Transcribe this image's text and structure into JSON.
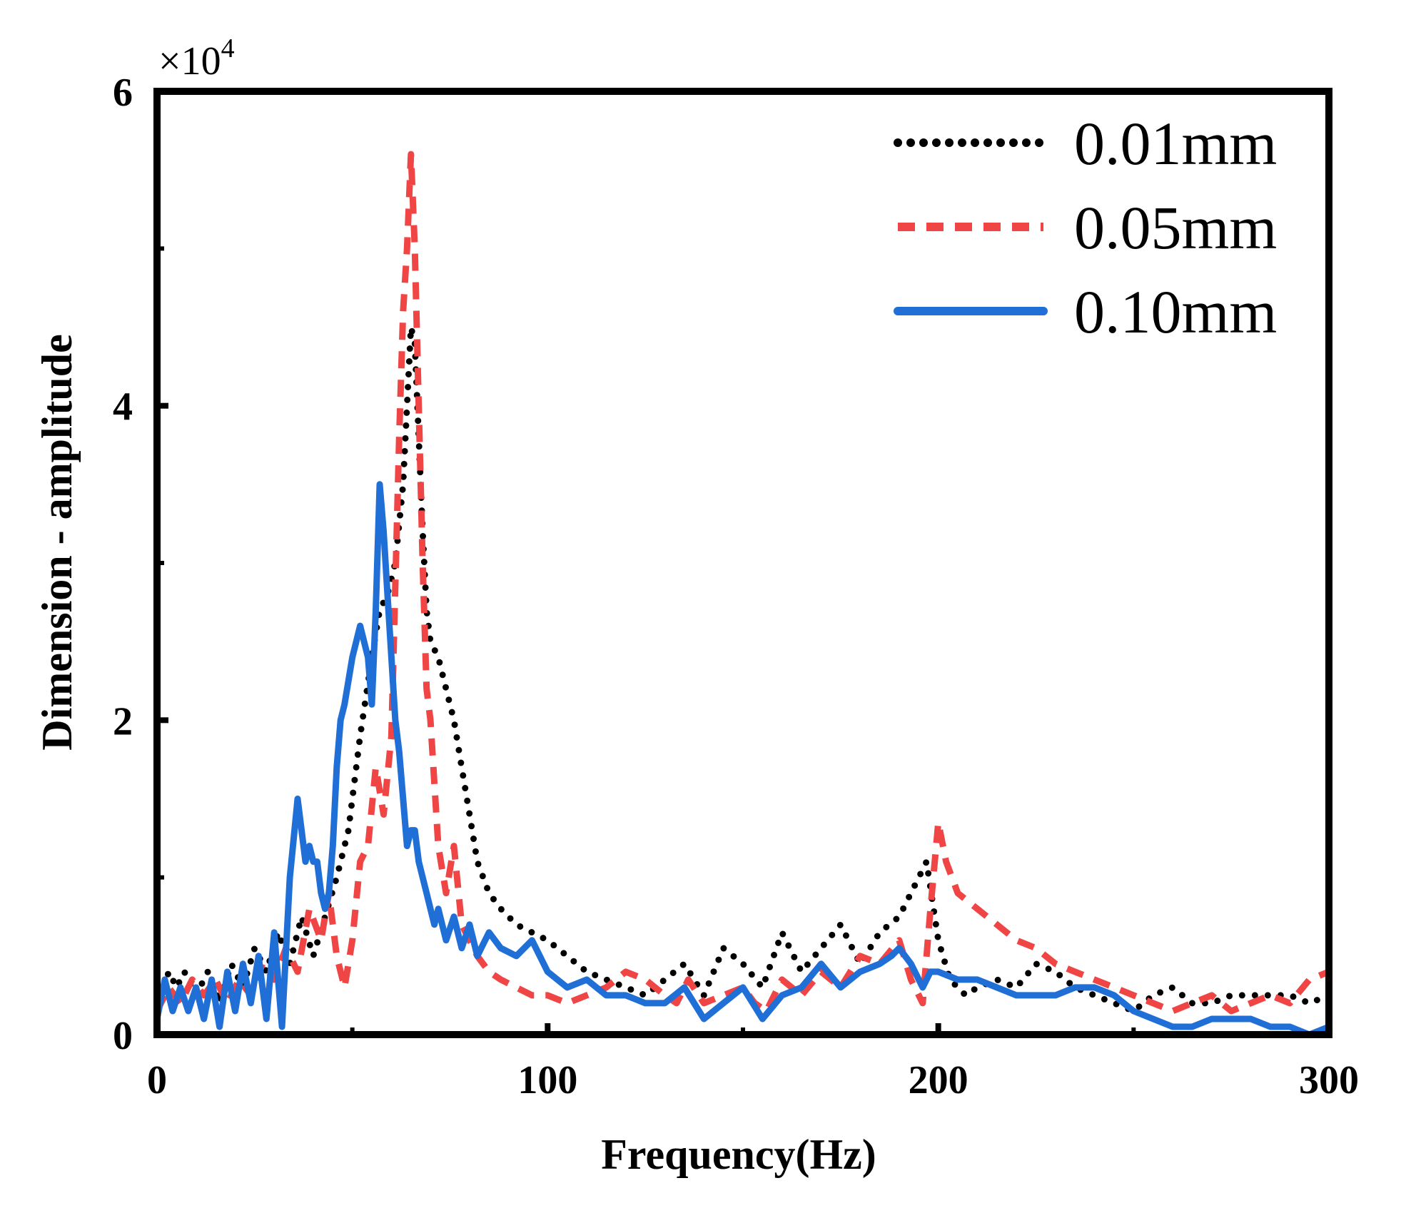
{
  "chart_data": {
    "type": "line",
    "title": "",
    "xlabel": "Frequency(Hz)",
    "ylabel": "Dimension - amplitude",
    "xlim": [
      0,
      300
    ],
    "ylim": [
      0,
      60000
    ],
    "xticks": [
      0,
      100,
      200,
      300
    ],
    "xtick_labels": [
      "0",
      "100",
      "200",
      "300"
    ],
    "yticks": [
      0,
      20000,
      40000,
      60000
    ],
    "ytick_labels": [
      "0",
      "2",
      "4",
      "6"
    ],
    "y_multiplier": {
      "base": "×10",
      "exponent": "4"
    },
    "grid": false,
    "legend_position": "top-right",
    "series": [
      {
        "name": "0.01mm",
        "color": "#000000",
        "style": "dotted",
        "x": [
          0,
          3,
          5,
          7,
          10,
          13,
          16,
          19,
          22,
          25,
          28,
          31,
          34,
          37,
          40,
          43,
          46,
          49,
          52,
          55,
          57,
          59,
          61,
          63,
          64,
          65,
          66,
          67,
          68,
          69,
          70,
          72,
          74,
          76,
          78,
          80,
          82,
          85,
          88,
          92,
          96,
          100,
          105,
          110,
          115,
          120,
          125,
          130,
          135,
          140,
          145,
          150,
          155,
          160,
          165,
          170,
          175,
          180,
          185,
          190,
          195,
          197,
          200,
          203,
          207,
          210,
          215,
          220,
          225,
          230,
          235,
          240,
          245,
          250,
          255,
          260,
          265,
          270,
          275,
          280,
          285,
          290,
          295,
          300
        ],
        "values": [
          1500,
          4000,
          3000,
          4000,
          2500,
          4000,
          2000,
          4500,
          3000,
          5500,
          4000,
          6500,
          4500,
          7500,
          5000,
          7500,
          10000,
          13000,
          19000,
          24000,
          27000,
          28000,
          30000,
          35000,
          40000,
          45000,
          44000,
          38000,
          32000,
          27000,
          25000,
          24000,
          22000,
          20000,
          17000,
          14000,
          11000,
          9000,
          8000,
          7000,
          6500,
          6000,
          5000,
          4000,
          3500,
          3000,
          2500,
          3500,
          4500,
          2500,
          5500,
          4500,
          3000,
          6500,
          4000,
          5500,
          7000,
          4500,
          6500,
          7500,
          10000,
          11000,
          6000,
          3500,
          2500,
          3000,
          3500,
          3000,
          4500,
          4000,
          3000,
          2500,
          2000,
          1500,
          2500,
          3000,
          2000,
          2000,
          2500,
          2500,
          2500,
          2500,
          2000,
          2500
        ]
      },
      {
        "name": "0.05mm",
        "color": "#f04545",
        "style": "dashed",
        "x": [
          0,
          3,
          6,
          9,
          12,
          15,
          18,
          21,
          24,
          27,
          30,
          33,
          36,
          39,
          42,
          44,
          46,
          48,
          50,
          52,
          54,
          56,
          58,
          60,
          62,
          63,
          64,
          65,
          66,
          67,
          68,
          69,
          70,
          72,
          74,
          76,
          78,
          80,
          82,
          85,
          88,
          92,
          96,
          100,
          105,
          110,
          115,
          120,
          125,
          130,
          133,
          136,
          140,
          145,
          150,
          153,
          156,
          160,
          165,
          170,
          175,
          180,
          185,
          190,
          193,
          196,
          198,
          200,
          202,
          205,
          210,
          215,
          220,
          225,
          230,
          235,
          240,
          245,
          250,
          255,
          260,
          265,
          270,
          275,
          280,
          285,
          290,
          295,
          300
        ],
        "values": [
          1500,
          3000,
          2000,
          3500,
          2500,
          3500,
          2000,
          3500,
          2500,
          4500,
          3500,
          5500,
          4000,
          8000,
          6000,
          9000,
          5000,
          3000,
          6000,
          11000,
          12000,
          17000,
          14000,
          19000,
          38000,
          46000,
          50000,
          56000,
          50000,
          40000,
          30000,
          22000,
          20000,
          12000,
          9000,
          12000,
          7000,
          6000,
          5000,
          4000,
          3500,
          3000,
          2500,
          2500,
          2000,
          2500,
          3000,
          4000,
          3500,
          2500,
          2000,
          3500,
          2000,
          2500,
          3000,
          2000,
          1500,
          3500,
          2500,
          4000,
          3000,
          5000,
          4500,
          6000,
          3500,
          2000,
          8000,
          13500,
          11000,
          9000,
          8000,
          7000,
          6000,
          5500,
          4500,
          4000,
          3500,
          3000,
          2500,
          2000,
          1500,
          2000,
          2500,
          1500,
          2000,
          2500,
          2000,
          3500,
          4000
        ]
      },
      {
        "name": "0.10mm",
        "color": "#1f6fd6",
        "style": "solid",
        "x": [
          0,
          2,
          4,
          6,
          8,
          10,
          12,
          14,
          16,
          18,
          20,
          22,
          24,
          26,
          28,
          30,
          32,
          34,
          36,
          38,
          39,
          40,
          41,
          42,
          43,
          44,
          45,
          46,
          47,
          48,
          50,
          52,
          54,
          55,
          56,
          57,
          58,
          59,
          60,
          61,
          62,
          63,
          64,
          65,
          66,
          67,
          68,
          69,
          70,
          71,
          72,
          74,
          76,
          78,
          80,
          82,
          85,
          88,
          92,
          96,
          100,
          105,
          110,
          115,
          120,
          125,
          130,
          135,
          140,
          145,
          150,
          155,
          160,
          165,
          170,
          175,
          180,
          185,
          188,
          190,
          193,
          196,
          198,
          200,
          205,
          210,
          215,
          220,
          225,
          230,
          235,
          240,
          245,
          250,
          255,
          260,
          265,
          270,
          275,
          280,
          285,
          290,
          295,
          300
        ],
        "values": [
          1000,
          3500,
          1500,
          3000,
          1500,
          3000,
          1000,
          3500,
          500,
          4000,
          1500,
          4500,
          2000,
          5000,
          1000,
          6500,
          500,
          10000,
          15000,
          11000,
          12000,
          11000,
          11000,
          9000,
          8000,
          9000,
          12000,
          17000,
          20000,
          21000,
          24000,
          26000,
          24000,
          21000,
          27000,
          35000,
          32000,
          28000,
          24000,
          20000,
          18000,
          15000,
          12000,
          13000,
          13000,
          11000,
          10000,
          9000,
          8000,
          7000,
          8000,
          6000,
          7500,
          5500,
          7000,
          5000,
          6500,
          5500,
          5000,
          6000,
          4000,
          3000,
          3500,
          2500,
          2500,
          2000,
          2000,
          3000,
          1000,
          2000,
          3000,
          1000,
          2500,
          3000,
          4500,
          3000,
          4000,
          4500,
          5000,
          5500,
          4500,
          3000,
          4000,
          4000,
          3500,
          3500,
          3000,
          2500,
          2500,
          2500,
          3000,
          3000,
          2500,
          1500,
          1000,
          500,
          500,
          1000,
          1000,
          1000,
          500,
          500,
          0,
          500
        ]
      }
    ]
  }
}
